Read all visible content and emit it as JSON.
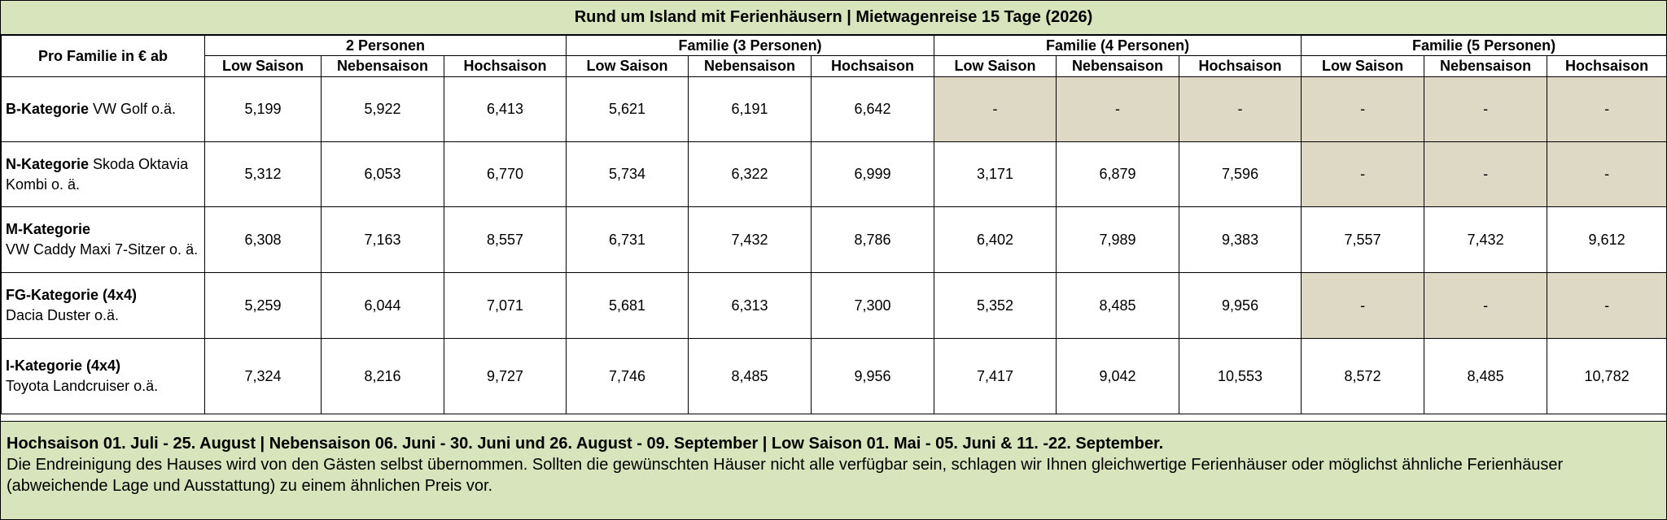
{
  "title": "Rund um Island mit Ferienhäusern | Mietwagenreise 15 Tage (2026)",
  "corner_label": "Pro Familie in € ab",
  "groups": [
    "2 Personen",
    "Familie (3 Personen)",
    "Familie (4 Personen)",
    "Familie (5 Personen)"
  ],
  "seasons": [
    "Low Saison",
    "Nebensaison",
    "Hochsaison"
  ],
  "rows": [
    {
      "bold": "B-Kategorie",
      "desc": " VW Golf o.ä.",
      "values": [
        "5,199",
        "5,922",
        "6,413",
        "5,621",
        "6,191",
        "6,642",
        "-",
        "-",
        "-",
        "-",
        "-",
        "-"
      ]
    },
    {
      "bold": "N-Kategorie",
      "desc": " Skoda Oktavia Kombi o. ä.",
      "values": [
        "5,312",
        "6,053",
        "6,770",
        "5,734",
        "6,322",
        "6,999",
        "3,171",
        "6,879",
        "7,596",
        "-",
        "-",
        "-"
      ]
    },
    {
      "bold": "M-Kategorie",
      "desc": "VW Caddy Maxi 7-Sitzer o. ä.",
      "values": [
        "6,308",
        "7,163",
        "8,557",
        "6,731",
        "7,432",
        "8,786",
        "6,402",
        "7,989",
        "9,383",
        "7,557",
        "7,432",
        "9,612"
      ]
    },
    {
      "bold": "FG-Kategorie (4x4)",
      "desc": "Dacia Duster o.ä.",
      "values": [
        "5,259",
        "6,044",
        "7,071",
        "5,681",
        "6,313",
        "7,300",
        "5,352",
        "8,485",
        "9,956",
        "-",
        "-",
        "-"
      ]
    },
    {
      "bold": "I-Kategorie (4x4)",
      "desc": "Toyota Landcruiser o.ä.",
      "values": [
        "7,324",
        "8,216",
        "9,727",
        "7,746",
        "8,485",
        "9,956",
        "7,417",
        "9,042",
        "10,553",
        "8,572",
        "8,485",
        "10,782"
      ]
    }
  ],
  "footer": {
    "bold_line": "Hochsaison 01. Juli - 25. August | Nebensaison 06. Juni - 30. Juni und 26. August - 09. September | Low Saison 01. Mai - 05. Juni & 11. -22. September.",
    "text": "Die Endreinigung des Hauses wird von den Gästen selbst übernommen. Sollten die gewünschten Häuser nicht alle verfügbar sein, schlagen wir Ihnen gleichwertige Ferienhäuser oder möglichst ähnliche Ferienhäuser (abweichende Lage und Ausstattung) zu einem ähnlichen Preis vor."
  },
  "colors": {
    "header_bg": "#d8e4bc",
    "unavailable_bg": "#ddd9c4"
  }
}
